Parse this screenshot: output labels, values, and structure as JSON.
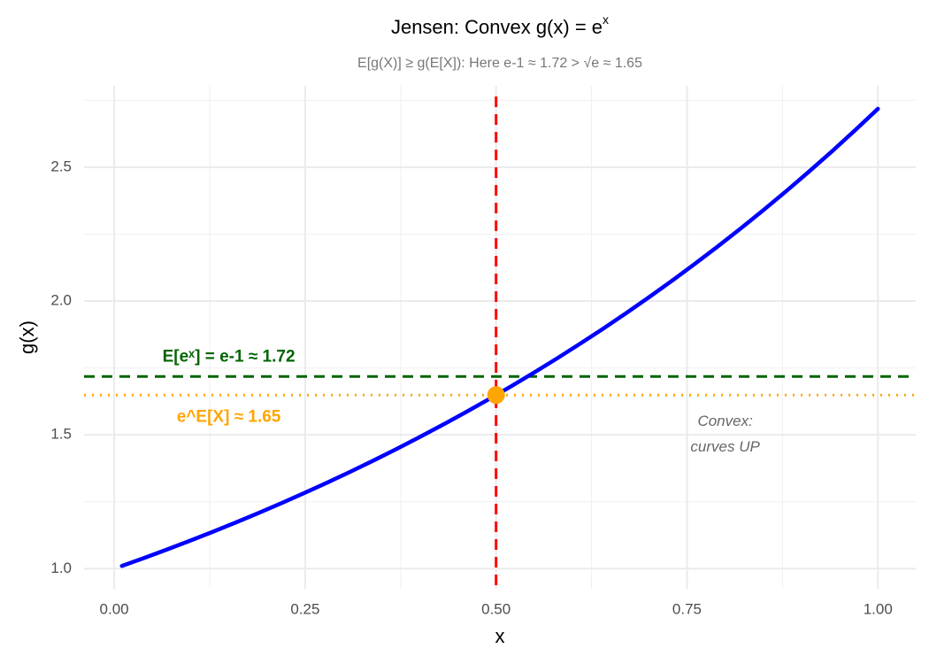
{
  "chart_data": {
    "type": "line",
    "title": "Jensen: Convex g(x) = e",
    "title_superscript": "x",
    "subtitle": "E[g(X)] ≥ g(E[X]): Here e-1 ≈ 1.72 > √e ≈ 1.65",
    "x_label": "x",
    "y_label": "g(x)",
    "xlim": [
      -0.0395,
      1.0495
    ],
    "ylim": [
      0.925,
      2.804
    ],
    "xticks": [
      {
        "value": 0,
        "label": "0.00"
      },
      0.25,
      {
        "value": 0.5,
        "label": "0.50"
      },
      0.75,
      {
        "value": 1,
        "label": "1.00"
      }
    ],
    "yticks": [
      {
        "value": 1,
        "label": "1.0"
      },
      1.5,
      {
        "value": 2,
        "label": "2.0"
      },
      2.5
    ],
    "xminor": [
      0.125,
      0.375,
      0.625,
      0.875
    ],
    "yminor": [
      1.25,
      1.75,
      2.25,
      2.75
    ],
    "grid": true,
    "series": [
      {
        "color": "#0000ff",
        "x": [
          0.01,
          0.04,
          0.07,
          0.1,
          0.13,
          0.16,
          0.19,
          0.22,
          0.25,
          0.28,
          0.31,
          0.34,
          0.37,
          0.4,
          0.43,
          0.46,
          0.49,
          0.52,
          0.55,
          0.58,
          0.61,
          0.64,
          0.67,
          0.7,
          0.73,
          0.76,
          0.79,
          0.82,
          0.85,
          0.88,
          0.91,
          0.94,
          0.97,
          1.0
        ],
        "values": [
          1.0101,
          1.0408,
          1.0725,
          1.1052,
          1.1388,
          1.1735,
          1.2092,
          1.2461,
          1.284,
          1.3231,
          1.3634,
          1.4049,
          1.4477,
          1.4918,
          1.5373,
          1.5841,
          1.6323,
          1.682,
          1.7333,
          1.786,
          1.8404,
          1.8965,
          1.9542,
          2.0138,
          2.0751,
          2.1383,
          2.2034,
          2.2705,
          2.3396,
          2.4109,
          2.4843,
          2.56,
          2.6379,
          2.7183
        ]
      }
    ],
    "vline": {
      "x": 0.5,
      "color": "#ff0000"
    },
    "hlines": [
      {
        "value": 1.7183,
        "color": "#006400",
        "style": "dashed"
      },
      {
        "value": 1.6487,
        "color": "#ffa500",
        "style": "dotted"
      }
    ],
    "point": {
      "x": 0.5,
      "y": 1.6487,
      "color": "#ffa500"
    },
    "annotations": [
      {
        "lines": [
          "E[eˣ] = e-1 ≈ 1.72"
        ],
        "x": 0.15,
        "y": 1.79,
        "color": "#006400",
        "bold": true
      },
      {
        "lines": [
          "e^E[X] ≈ 1.65"
        ],
        "x": 0.15,
        "y": 1.565,
        "color": "#ffa500",
        "bold": true
      },
      {
        "lines": [
          "Convex:",
          "curves UP"
        ],
        "x": 0.8,
        "y": 1.5,
        "color": "#666666",
        "italic": true
      }
    ]
  }
}
